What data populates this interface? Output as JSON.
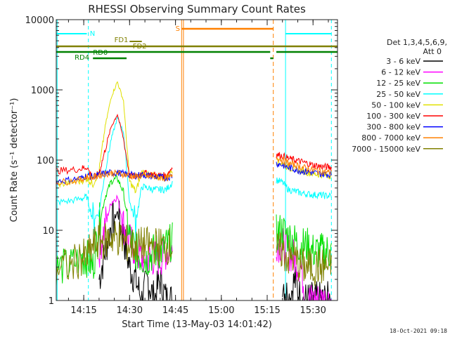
{
  "chart_data": {
    "type": "line",
    "title": "RHESSI Observing Summary Count Rates",
    "xlabel": "Start Time (13-May-03 14:01:42)",
    "ylabel": "Count Rate (s⁻¹ detector⁻¹)",
    "y_scale": "log",
    "xlim": [
      "14:06",
      "15:38"
    ],
    "ylim": [
      1,
      10000
    ],
    "x_ticks": [
      "14:15",
      "14:30",
      "14:45",
      "15:00",
      "15:15",
      "15:30"
    ],
    "y_ticks": [
      "1",
      "10",
      "100",
      "1000",
      "10000"
    ],
    "legend_header": [
      "Det 1,3,4,5,6,9,",
      "Att 0"
    ],
    "legend_position": "right",
    "footer_date": "18-Oct-2021 09:18",
    "x": [
      "14:06",
      "14:10",
      "14:14",
      "14:16",
      "14:18",
      "14:20",
      "14:22",
      "14:24",
      "14:26",
      "14:28",
      "14:30",
      "14:32",
      "14:34",
      "14:36",
      "14:38",
      "14:40",
      "14:42",
      "14:44",
      "14:46",
      "15:17",
      "15:18",
      "15:20",
      "15:22",
      "15:24",
      "15:26",
      "15:28",
      "15:30",
      "15:32",
      "15:34",
      "15:36"
    ],
    "series": [
      {
        "name": "3 - 6 keV",
        "color": "#000000",
        "values": [
          null,
          null,
          null,
          null,
          null,
          2,
          5,
          12,
          18,
          8,
          3,
          2,
          1,
          2,
          1,
          2,
          1,
          1,
          null,
          null,
          null,
          2,
          1,
          2,
          1,
          1,
          1,
          1,
          1,
          1
        ]
      },
      {
        "name": "6 - 12 keV",
        "color": "#ff00ff",
        "values": [
          null,
          null,
          null,
          null,
          null,
          5,
          12,
          25,
          30,
          12,
          7,
          5,
          4,
          4,
          4,
          4,
          5,
          5,
          null,
          null,
          7,
          6,
          5,
          4,
          3,
          1,
          1,
          1,
          1,
          1
        ]
      },
      {
        "name": "12 - 25 keV",
        "color": "#00e000",
        "values": [
          3,
          3,
          4,
          4,
          3,
          12,
          30,
          50,
          55,
          35,
          8,
          5,
          4,
          4,
          5,
          5,
          6,
          7,
          null,
          null,
          9,
          10,
          8,
          7,
          6,
          6,
          5,
          5,
          5,
          5
        ]
      },
      {
        "name": "25 - 50 keV",
        "color": "#00ffff",
        "values": [
          25,
          26,
          28,
          30,
          14,
          18,
          70,
          200,
          400,
          250,
          25,
          13,
          42,
          40,
          38,
          38,
          38,
          48,
          null,
          null,
          52,
          48,
          38,
          36,
          34,
          33,
          32,
          32,
          31,
          31
        ]
      },
      {
        "name": "50 - 100 keV",
        "color": "#e0e000",
        "values": [
          45,
          47,
          50,
          55,
          45,
          70,
          300,
          800,
          1300,
          700,
          50,
          35,
          68,
          62,
          60,
          58,
          57,
          72,
          null,
          null,
          95,
          90,
          78,
          74,
          70,
          67,
          64,
          62,
          61,
          60
        ]
      },
      {
        "name": "100 - 300 keV",
        "color": "#ff0000",
        "values": [
          70,
          72,
          75,
          80,
          55,
          65,
          140,
          300,
          450,
          200,
          60,
          58,
          66,
          64,
          62,
          60,
          60,
          80,
          null,
          null,
          120,
          115,
          105,
          100,
          95,
          90,
          85,
          82,
          80,
          79
        ]
      },
      {
        "name": "300 - 800 keV",
        "color": "#0000ff",
        "values": [
          50,
          52,
          55,
          60,
          58,
          62,
          65,
          66,
          66,
          64,
          62,
          60,
          62,
          60,
          58,
          57,
          56,
          60,
          null,
          null,
          90,
          85,
          78,
          74,
          70,
          68,
          66,
          64,
          63,
          62
        ]
      },
      {
        "name": "800 - 7000 keV",
        "color": "#ff8000",
        "values": [
          48,
          50,
          52,
          58,
          56,
          60,
          64,
          65,
          65,
          63,
          60,
          58,
          60,
          58,
          57,
          56,
          55,
          58,
          null,
          null,
          110,
          100,
          90,
          85,
          80,
          76,
          72,
          70,
          68,
          66
        ]
      },
      {
        "name": "7000 - 15000 keV",
        "color": "#808000",
        "values": [
          3,
          3,
          4,
          4,
          6,
          7,
          7,
          8,
          8,
          7,
          6,
          6,
          6,
          6,
          6,
          6,
          6,
          6,
          null,
          null,
          5,
          5,
          4,
          4,
          3,
          3,
          3,
          3,
          3,
          3
        ]
      }
    ],
    "flags": [
      {
        "label": "N",
        "color": "#00ffff"
      },
      {
        "label": "FD1",
        "color": "#808000"
      },
      {
        "label": "FD2",
        "color": "#808000"
      },
      {
        "label": "RD0",
        "color": "#008000"
      },
      {
        "label": "RD4",
        "color": "#008000"
      },
      {
        "label": "S",
        "color": "#ff8000"
      }
    ],
    "grid": false
  }
}
